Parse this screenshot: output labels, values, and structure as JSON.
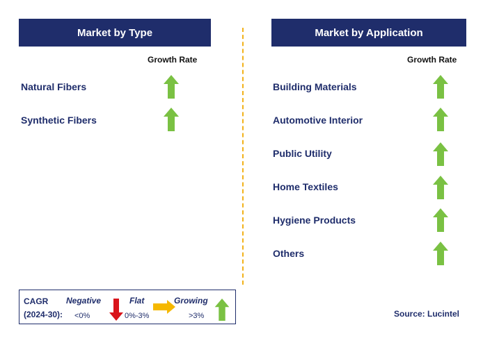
{
  "colors": {
    "header_bg": "#1f2d6b",
    "label_text": "#1f2d6b",
    "up_arrow": "#7ac143",
    "down_arrow": "#d9141b",
    "flat_arrow": "#f5b800",
    "divider": "#f2b21a"
  },
  "type_panel": {
    "title": "Market by Type",
    "growth_label": "Growth Rate",
    "items": [
      {
        "label": "Natural Fibers",
        "trend": "up"
      },
      {
        "label": "Synthetic Fibers",
        "trend": "up"
      }
    ]
  },
  "application_panel": {
    "title": "Market by Application",
    "growth_label": "Growth Rate",
    "items": [
      {
        "label": "Building Materials",
        "trend": "up"
      },
      {
        "label": "Automotive Interior",
        "trend": "up"
      },
      {
        "label": "Public Utility",
        "trend": "up"
      },
      {
        "label": "Home Textiles",
        "trend": "up"
      },
      {
        "label": "Hygiene Products",
        "trend": "up"
      },
      {
        "label": "Others",
        "trend": "up"
      }
    ]
  },
  "legend": {
    "cagr_line1": "CAGR",
    "cagr_line2": "(2024-30):",
    "negative_label": "Negative",
    "negative_value": "<0%",
    "flat_label": "Flat",
    "flat_value": "0%-3%",
    "growing_label": "Growing",
    "growing_value": ">3%"
  },
  "source": "Source: Lucintel"
}
